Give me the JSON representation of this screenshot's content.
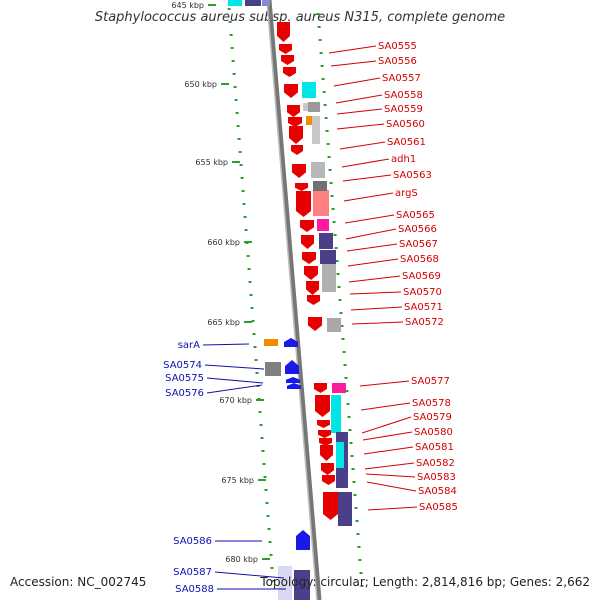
{
  "title": "Staphylococcus aureus subsp. aureus N315, complete genome",
  "footer": {
    "accession": "Accession: NC_002745",
    "summary": "Topology: circular; Length: 2,814,816 bp; Genes: 2,662"
  },
  "colors": {
    "right_label": "#d40000",
    "left_label": "#1010b0",
    "red_gene": "#e80000",
    "blue_gene": "#1a1ae6",
    "cyan": "#00e5e5",
    "pink": "#ff1aa0",
    "dark_purple": "#4a3f88",
    "grey": "#b0b0b0",
    "orange": "#f08c00",
    "tick": "#2aa02a"
  },
  "kbp_labels": [
    "645 kbp",
    "650 kbp",
    "655 kbp",
    "660 kbp",
    "665 kbp",
    "670 kbp",
    "675 kbp",
    "680 kbp"
  ],
  "right_genes": [
    "SA0555",
    "SA0556",
    "SA0557",
    "SA0558",
    "SA0559",
    "SA0560",
    "SA0561",
    "adh1",
    "SA0563",
    "argS",
    "SA0565",
    "SA0566",
    "SA0567",
    "SA0568",
    "SA0569",
    "SA0570",
    "SA0571",
    "SA0572",
    "SA0577",
    "SA0578",
    "SA0579",
    "SA0580",
    "SA0581",
    "SA0582",
    "SA0583",
    "SA0584",
    "SA0585"
  ],
  "left_genes": [
    "sarA",
    "SA0574",
    "SA0575",
    "SA0576",
    "SA0586",
    "SA0587",
    "SA0588"
  ]
}
